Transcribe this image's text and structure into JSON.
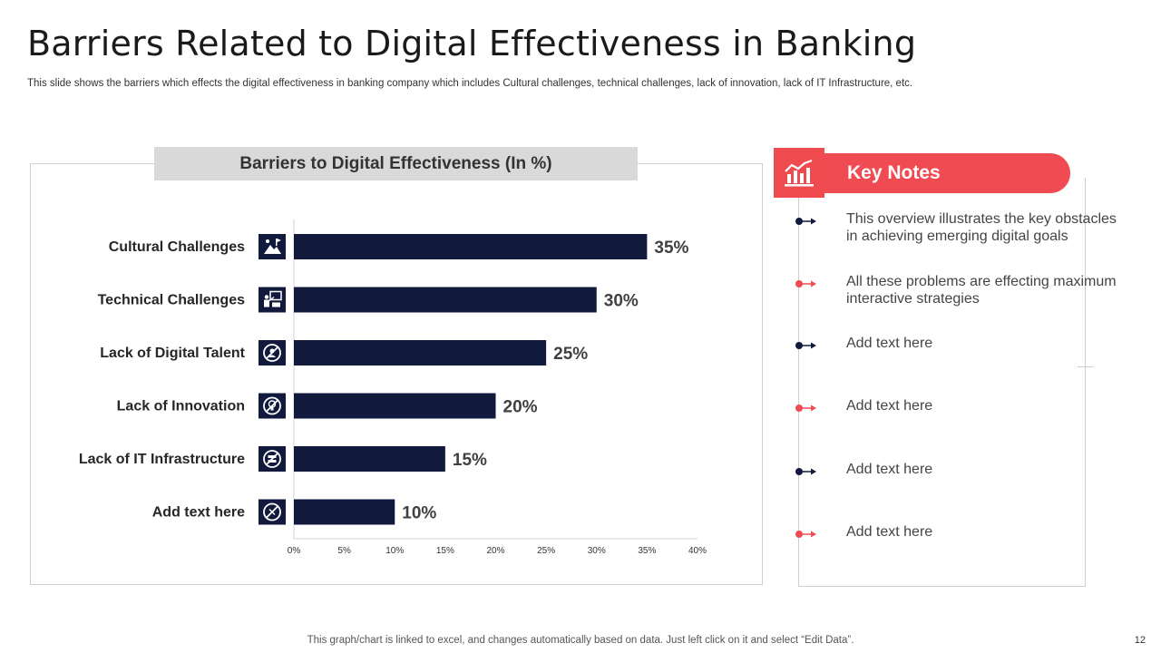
{
  "slide": {
    "title": "Barriers Related to Digital Effectiveness in Banking",
    "subtitle": "This slide shows the barriers which effects the digital effectiveness in banking company which includes Cultural challenges, technical challenges, lack of innovation, lack of IT Infrastructure, etc.",
    "footer": "This graph/chart is linked to excel,  and changes automatically based on data. Just left click on it and select “Edit Data”.",
    "page_number": "12"
  },
  "chart_data": {
    "type": "bar",
    "orientation": "horizontal",
    "title": "Barriers to Digital Effectiveness (In %)",
    "categories": [
      "Cultural Challenges",
      "Technical Challenges",
      "Lack of Digital Talent",
      "Lack of Innovation",
      "Lack of IT Infrastructure",
      "Add text here"
    ],
    "values": [
      35,
      30,
      25,
      20,
      15,
      10
    ],
    "value_labels": [
      "35%",
      "30%",
      "25%",
      "20%",
      "15%",
      "10%"
    ],
    "xlim": [
      0,
      40
    ],
    "xticks": [
      "0%",
      "5%",
      "10%",
      "15%",
      "20%",
      "25%",
      "30%",
      "35%",
      "40%"
    ],
    "bar_color": "#111a3d",
    "icons": [
      "mountain-climb-icon",
      "presentation-icon",
      "no-talent-icon",
      "no-idea-icon",
      "no-server-icon",
      "no-entry-icon"
    ]
  },
  "key_notes": {
    "title": "Key Notes",
    "icon": "chart-analytics-icon",
    "accent": "#f04b52",
    "dark": "#111a3d",
    "items": [
      {
        "text": "This overview illustrates the key obstacles in achieving emerging digital goals",
        "color": "dark"
      },
      {
        "text": "All these problems are effecting maximum interactive strategies",
        "color": "red"
      },
      {
        "text": "Add text here",
        "color": "dark"
      },
      {
        "text": "Add text here",
        "color": "red"
      },
      {
        "text": "Add text here",
        "color": "dark"
      },
      {
        "text": "Add text here",
        "color": "red"
      }
    ]
  }
}
